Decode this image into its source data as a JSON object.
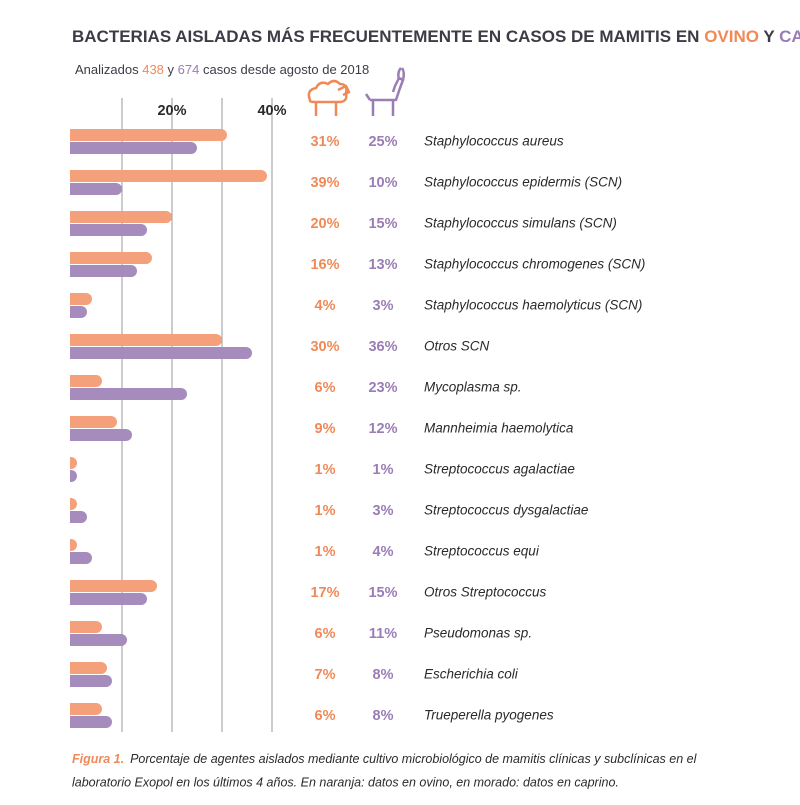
{
  "chart_data": {
    "type": "hbar",
    "title_parts": [
      "BACTERIAS AISLADAS MÁS FRECUENTEMENTE EN CASOS DE MAMITIS EN ",
      " Y "
    ],
    "subtitle_parts": [
      "Analizados ",
      " y ",
      " casos desde agosto de 2018"
    ],
    "cases": [
      438,
      674
    ],
    "categories": [
      "Staphylococcus aureus",
      "Staphylococcus epidermis (SCN)",
      "Staphylococcus simulans (SCN)",
      "Staphylococcus chromogenes (SCN)",
      "Staphylococcus haemolyticus (SCN)",
      "Otros SCN",
      "Mycoplasma sp.",
      "Mannheimia haemolytica",
      "Streptococcus agalactiae",
      "Streptococcus dysgalactiae",
      "Streptococcus equi",
      "Otros Streptococcus",
      "Pseudomonas sp.",
      "Escherichia coli",
      "Trueperella pyogenes"
    ],
    "series": [
      {
        "name": "OVINO",
        "color": "#f4a07a",
        "text_color": "#ef8a58",
        "values": [
          31,
          39,
          20,
          16,
          4,
          30,
          6,
          9,
          1,
          1,
          1,
          17,
          6,
          7,
          6
        ],
        "value_labels": [
          "31%",
          "39%",
          "20%",
          "16%",
          "4%",
          "30%",
          "6%",
          "9%",
          "1%",
          "1%",
          "1%",
          "17%",
          "6%",
          "7%",
          "6%"
        ]
      },
      {
        "name": "CAPRINO",
        "color": "#a68bbd",
        "text_color": "#9b7db6",
        "values": [
          25,
          10,
          15,
          13,
          3,
          36,
          23,
          12,
          1,
          3,
          4,
          15,
          11,
          8,
          8
        ],
        "value_labels": [
          "25%",
          "10%",
          "15%",
          "13%",
          "3%",
          "36%",
          "23%",
          "12%",
          "1%",
          "3%",
          "4%",
          "15%",
          "11%",
          "8%",
          "8%"
        ]
      }
    ],
    "xlim": [
      0,
      40
    ],
    "xticks": [
      {
        "value": 20,
        "label": "20%"
      },
      {
        "value": 40,
        "label": "40%"
      }
    ],
    "grid_x": [
      10,
      20,
      30,
      40
    ],
    "caption_label": "Figura 1.",
    "caption_lines": [
      "Porcentaje de agentes aislados mediante cultivo microbiológico de mamitis clínicas y subclínicas en el",
      "laboratorio Exopol en los últimos 4 años. En naranja: datos en ovino, en morado: datos en caprino."
    ]
  }
}
